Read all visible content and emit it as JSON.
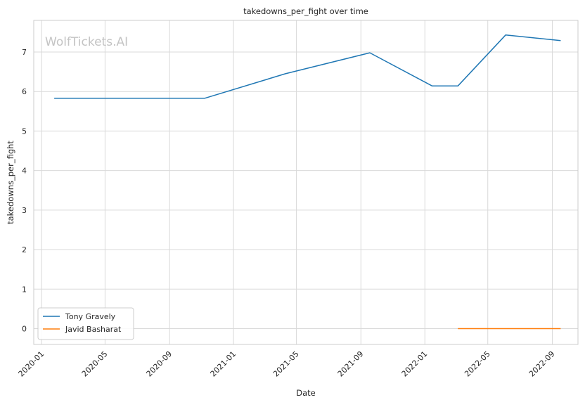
{
  "chart_data": {
    "type": "line",
    "title": "takedowns_per_fight over time",
    "xlabel": "Date",
    "ylabel": "takedowns_per_fight",
    "watermark": "WolfTickets.AI",
    "x_axis_type": "date",
    "xlim": [
      "2019-12-17",
      "2022-10-20"
    ],
    "ylim": [
      -0.4,
      7.8
    ],
    "x_ticks": [
      "2020-01",
      "2020-05",
      "2020-09",
      "2021-01",
      "2021-05",
      "2021-09",
      "2022-01",
      "2022-05",
      "2022-09"
    ],
    "y_ticks": [
      0,
      1,
      2,
      3,
      4,
      5,
      6,
      7
    ],
    "grid": true,
    "legend_position": "lower-left",
    "series": [
      {
        "name": "Tony Gravely",
        "color": "#1f77b4",
        "points": [
          {
            "x": "2020-01-25",
            "y": 5.83
          },
          {
            "x": "2020-11-07",
            "y": 5.83
          },
          {
            "x": "2021-04-10",
            "y": 6.45
          },
          {
            "x": "2021-09-18",
            "y": 6.98
          },
          {
            "x": "2022-01-15",
            "y": 6.14
          },
          {
            "x": "2022-03-05",
            "y": 6.14
          },
          {
            "x": "2022-06-04",
            "y": 7.43
          },
          {
            "x": "2022-09-17",
            "y": 7.29
          }
        ]
      },
      {
        "name": "Javid Basharat",
        "color": "#ff7f0e",
        "points": [
          {
            "x": "2022-03-05",
            "y": 0
          },
          {
            "x": "2022-09-17",
            "y": 0
          }
        ]
      }
    ]
  }
}
